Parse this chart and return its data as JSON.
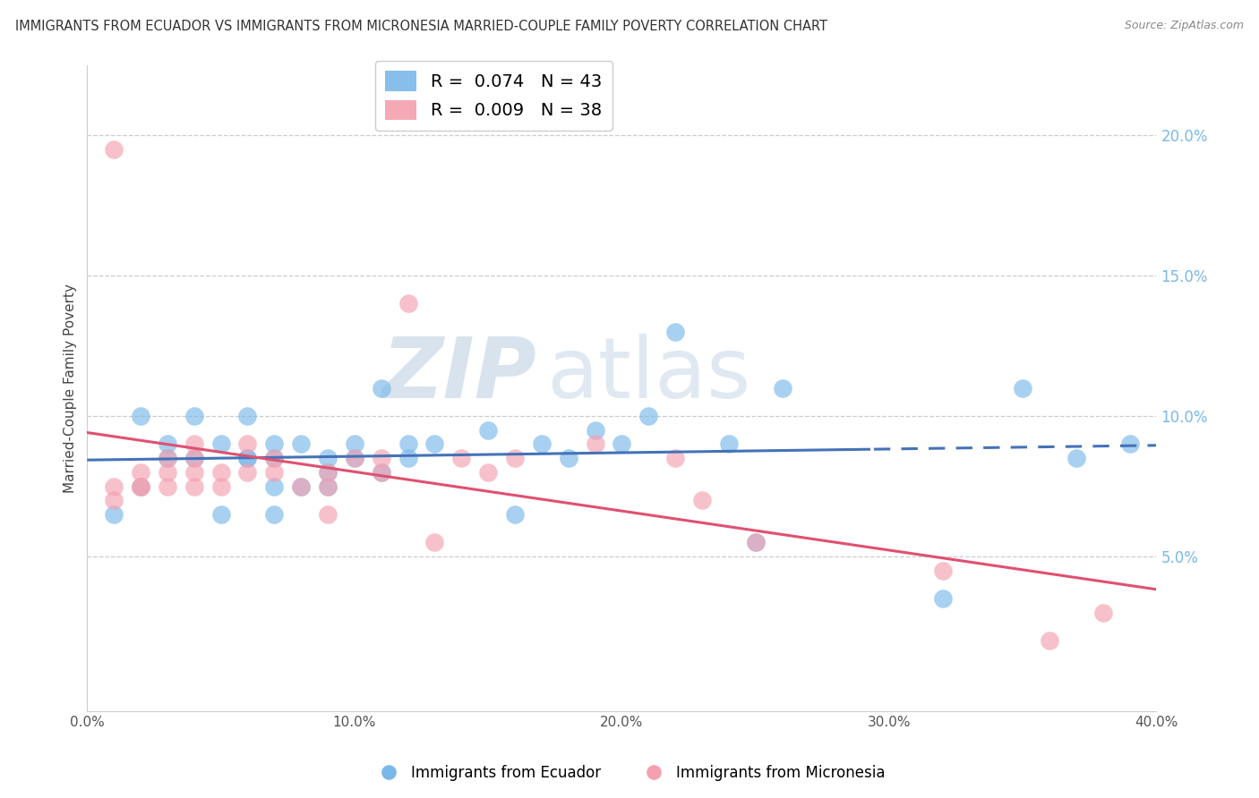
{
  "title": "IMMIGRANTS FROM ECUADOR VS IMMIGRANTS FROM MICRONESIA MARRIED-COUPLE FAMILY POVERTY CORRELATION CHART",
  "source": "Source: ZipAtlas.com",
  "ylabel": "Married-Couple Family Poverty",
  "xlim": [
    0.0,
    0.4
  ],
  "ylim": [
    -0.005,
    0.225
  ],
  "xticks": [
    0.0,
    0.1,
    0.2,
    0.3,
    0.4
  ],
  "yticks": [
    0.05,
    0.1,
    0.15,
    0.2
  ],
  "legend1_label": "R =  0.074   N = 43",
  "legend2_label": "R =  0.009   N = 38",
  "color_blue": "#7ab8e8",
  "color_pink": "#f4a0b0",
  "watermark_zip": "ZIP",
  "watermark_atlas": "atlas",
  "bottom_label1": "Immigrants from Ecuador",
  "bottom_label2": "Immigrants from Micronesia",
  "ecuador_x": [
    0.01,
    0.02,
    0.02,
    0.03,
    0.03,
    0.04,
    0.04,
    0.05,
    0.05,
    0.06,
    0.06,
    0.06,
    0.07,
    0.07,
    0.07,
    0.07,
    0.08,
    0.08,
    0.09,
    0.09,
    0.09,
    0.1,
    0.1,
    0.11,
    0.11,
    0.12,
    0.12,
    0.13,
    0.15,
    0.16,
    0.17,
    0.18,
    0.19,
    0.2,
    0.21,
    0.22,
    0.24,
    0.25,
    0.26,
    0.32,
    0.35,
    0.37,
    0.39
  ],
  "ecuador_y": [
    0.065,
    0.075,
    0.1,
    0.085,
    0.09,
    0.085,
    0.1,
    0.065,
    0.09,
    0.085,
    0.085,
    0.1,
    0.065,
    0.075,
    0.085,
    0.09,
    0.075,
    0.09,
    0.075,
    0.08,
    0.085,
    0.085,
    0.09,
    0.08,
    0.11,
    0.085,
    0.09,
    0.09,
    0.095,
    0.065,
    0.09,
    0.085,
    0.095,
    0.09,
    0.1,
    0.13,
    0.09,
    0.055,
    0.11,
    0.035,
    0.11,
    0.085,
    0.09
  ],
  "micronesia_x": [
    0.01,
    0.01,
    0.01,
    0.02,
    0.02,
    0.02,
    0.03,
    0.03,
    0.03,
    0.04,
    0.04,
    0.04,
    0.04,
    0.05,
    0.05,
    0.06,
    0.06,
    0.07,
    0.07,
    0.08,
    0.09,
    0.09,
    0.09,
    0.1,
    0.11,
    0.11,
    0.12,
    0.13,
    0.14,
    0.15,
    0.16,
    0.19,
    0.22,
    0.23,
    0.25,
    0.32,
    0.36,
    0.38
  ],
  "micronesia_y": [
    0.195,
    0.075,
    0.07,
    0.075,
    0.075,
    0.08,
    0.085,
    0.08,
    0.075,
    0.085,
    0.075,
    0.08,
    0.09,
    0.08,
    0.075,
    0.09,
    0.08,
    0.08,
    0.085,
    0.075,
    0.065,
    0.075,
    0.08,
    0.085,
    0.08,
    0.085,
    0.14,
    0.055,
    0.085,
    0.08,
    0.085,
    0.09,
    0.085,
    0.07,
    0.055,
    0.045,
    0.02,
    0.03
  ]
}
